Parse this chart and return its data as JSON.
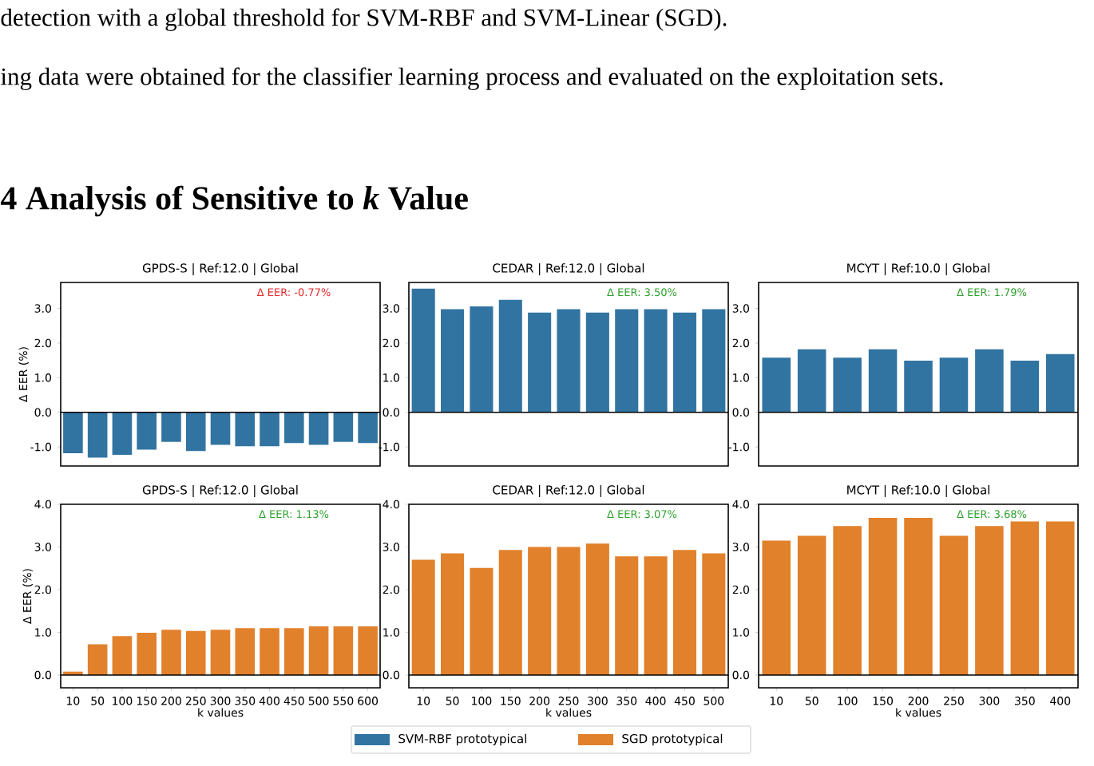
{
  "chart_data": [
    {
      "type": "other",
      "title": "4 Analysis of Sensitive to *k* Value",
      "annotations": [
        "detection with a global threshold for SVM-RBF and SVM-Linear (SGD).",
        "ing data were obtained for the classifier learning process and evaluated on the exploitation sets."
      ]
    },
    {
      "type": "bar",
      "title": "GPDS-S | Ref:12.0 |  Global",
      "ylabel": "Δ EER (%)",
      "categories": [
        null,
        null,
        null,
        null,
        null,
        null,
        null,
        null,
        null,
        null,
        null,
        null,
        null
      ],
      "series": [
        {
          "name": "SVM-RBF prototypical",
          "color": "#3274a1",
          "values": [
            -1.18,
            -1.31,
            -1.23,
            -1.08,
            -0.85,
            -1.12,
            -0.94,
            -0.98,
            -0.98,
            -0.89,
            -0.94,
            -0.85,
            -0.89
          ]
        }
      ],
      "ylim": [
        -1.55,
        3.75
      ],
      "yticks": [
        {
          "value": -1,
          "label": "-1.0"
        },
        {
          "value": 0,
          "label": "0.0"
        },
        {
          "value": 1,
          "label": "1.0"
        },
        {
          "value": 2,
          "label": "2.0"
        },
        {
          "value": 3,
          "label": "3.0"
        }
      ],
      "ref_lines": [
        {
          "axis": "y",
          "value": 0,
          "color": "#000000"
        }
      ],
      "annotations": [
        "Δ EER: -0.77%"
      ],
      "legend": "bottom"
    },
    {
      "type": "bar",
      "title": "CEDAR | Ref:12.0 |  Global",
      "categories": [
        null,
        null,
        null,
        null,
        null,
        null,
        null,
        null,
        null,
        null,
        null
      ],
      "series": [
        {
          "color": "#3274a1",
          "values": [
            3.57,
            2.98,
            3.06,
            3.25,
            2.88,
            2.98,
            2.88,
            2.98,
            2.98,
            2.88,
            2.98
          ]
        }
      ],
      "ylim": [
        -1.55,
        3.75
      ],
      "yticks": [
        {
          "value": -1,
          "label": "-1.0"
        },
        {
          "value": 0,
          "label": "0.0"
        },
        {
          "value": 1,
          "label": "1.0"
        },
        {
          "value": 2,
          "label": "2.0"
        },
        {
          "value": 3,
          "label": "3.0"
        }
      ],
      "ref_lines": [
        {
          "axis": "y",
          "value": 0,
          "color": "#000000"
        }
      ],
      "annotations": [
        "Δ EER: 3.50%"
      ]
    },
    {
      "type": "bar",
      "title": "MCYT | Ref:10.0 |  Global",
      "categories": [
        null,
        null,
        null,
        null,
        null,
        null,
        null,
        null,
        null
      ],
      "series": [
        {
          "color": "#3274a1",
          "values": [
            1.58,
            1.82,
            1.58,
            1.82,
            1.49,
            1.58,
            1.82,
            1.49,
            1.68
          ]
        }
      ],
      "ylim": [
        -1.55,
        3.75
      ],
      "yticks": [
        {
          "value": -1,
          "label": "-1.0"
        },
        {
          "value": 0,
          "label": "0.0"
        },
        {
          "value": 1,
          "label": "1.0"
        },
        {
          "value": 2,
          "label": "2.0"
        },
        {
          "value": 3,
          "label": "3.0"
        }
      ],
      "ref_lines": [
        {
          "axis": "y",
          "value": 0,
          "color": "#000000"
        }
      ],
      "annotations": [
        "Δ EER: 1.79%"
      ]
    },
    {
      "type": "bar",
      "title": "GPDS-S | Ref:12.0 |  Global",
      "ylabel": "Δ EER (%)",
      "xlabel": "k values",
      "categories": [
        "10",
        "50",
        "100",
        "150",
        "200",
        "250",
        "300",
        "350",
        "400",
        "450",
        "500",
        "550",
        "600"
      ],
      "series": [
        {
          "name": "SGD prototypical",
          "color": "#e1812c",
          "values": [
            0.08,
            0.72,
            0.91,
            0.99,
            1.06,
            1.03,
            1.06,
            1.1,
            1.1,
            1.1,
            1.14,
            1.14,
            1.14
          ]
        }
      ],
      "ylim": [
        -0.3,
        4.0
      ],
      "yticks": [
        {
          "value": 0,
          "label": "0.0"
        },
        {
          "value": 1,
          "label": "1.0"
        },
        {
          "value": 2,
          "label": "2.0"
        },
        {
          "value": 3,
          "label": "3.0"
        },
        {
          "value": 4,
          "label": "4.0"
        }
      ],
      "ref_lines": [
        {
          "axis": "y",
          "value": 0,
          "color": "#000000"
        }
      ],
      "annotations": [
        "Δ EER: 1.13%"
      ],
      "legend": "bottom"
    },
    {
      "type": "bar",
      "title": "CEDAR | Ref:12.0 |  Global",
      "xlabel": "k values",
      "categories": [
        "10",
        "50",
        "100",
        "150",
        "200",
        "250",
        "300",
        "350",
        "400",
        "450",
        "500"
      ],
      "series": [
        {
          "color": "#e1812c",
          "values": [
            2.7,
            2.85,
            2.51,
            2.93,
            3.0,
            3.0,
            3.08,
            2.78,
            2.78,
            2.93,
            2.85
          ]
        }
      ],
      "ylim": [
        -0.3,
        4.0
      ],
      "yticks": [
        {
          "value": 0,
          "label": "0.0"
        },
        {
          "value": 1,
          "label": "1.0"
        },
        {
          "value": 2,
          "label": "2.0"
        },
        {
          "value": 3,
          "label": "3.0"
        },
        {
          "value": 4,
          "label": "4.0"
        }
      ],
      "ref_lines": [
        {
          "axis": "y",
          "value": 0,
          "color": "#000000"
        }
      ],
      "annotations": [
        "Δ EER: 3.07%"
      ]
    },
    {
      "type": "bar",
      "title": "MCYT | Ref:10.0 |  Global",
      "xlabel": "k values",
      "categories": [
        "10",
        "50",
        "100",
        "150",
        "200",
        "250",
        "300",
        "350",
        "400"
      ],
      "series": [
        {
          "color": "#e1812c",
          "values": [
            3.15,
            3.26,
            3.49,
            3.68,
            3.68,
            3.26,
            3.49,
            3.6,
            3.6
          ]
        }
      ],
      "ylim": [
        -0.3,
        4.0
      ],
      "yticks": [
        {
          "value": 0,
          "label": "0.0"
        },
        {
          "value": 1,
          "label": "1.0"
        },
        {
          "value": 2,
          "label": "2.0"
        },
        {
          "value": 3,
          "label": "3.0"
        },
        {
          "value": 4,
          "label": "4.0"
        }
      ],
      "ref_lines": [
        {
          "axis": "y",
          "value": 0,
          "color": "#000000"
        }
      ],
      "annotations": [
        "Δ EER: 3.68%"
      ]
    }
  ]
}
